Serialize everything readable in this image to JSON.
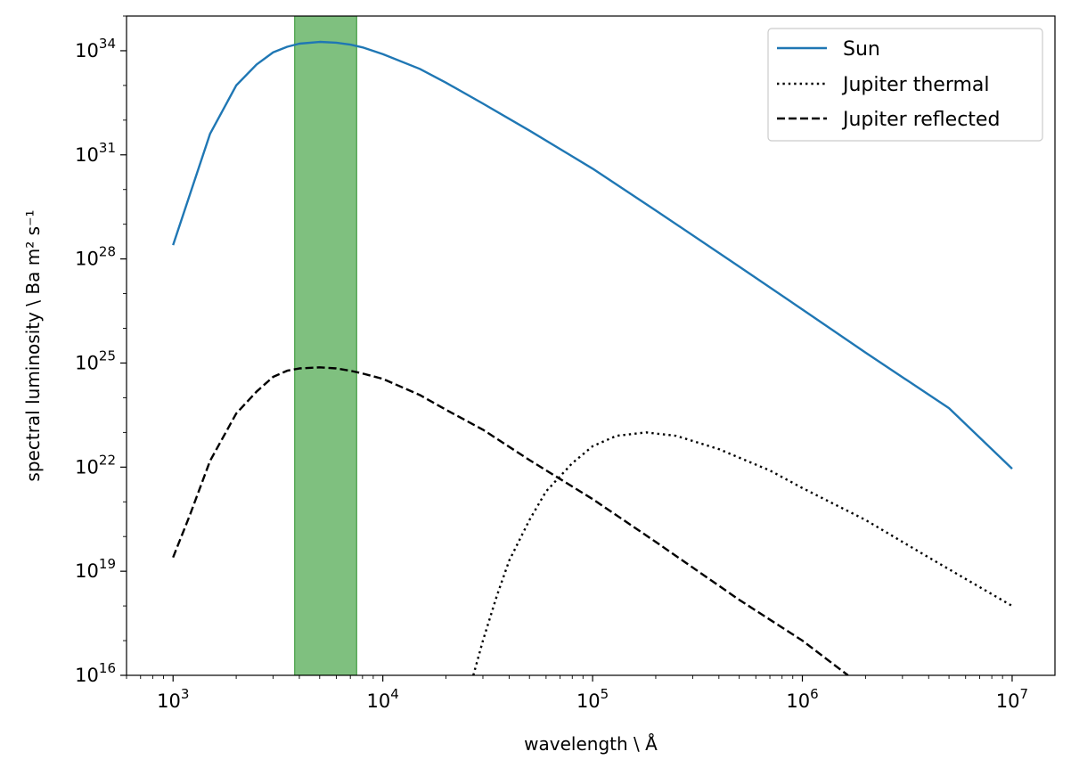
{
  "chart_data": {
    "type": "line",
    "x_scale": "log",
    "y_scale": "log",
    "xlabel": "wavelength \\ Å",
    "ylabel": "spectral luminosity \\ Ba m² s⁻¹",
    "xlim": [
      600,
      16000000
    ],
    "ylim": [
      1e+16,
      1e+35
    ],
    "x_ticks": [
      {
        "value": 1000,
        "base": "10",
        "exp": "3"
      },
      {
        "value": 10000,
        "base": "10",
        "exp": "4"
      },
      {
        "value": 100000,
        "base": "10",
        "exp": "5"
      },
      {
        "value": 1000000,
        "base": "10",
        "exp": "6"
      },
      {
        "value": 10000000,
        "base": "10",
        "exp": "7"
      }
    ],
    "y_ticks": [
      {
        "value": 1e+16,
        "base": "10",
        "exp": "16"
      },
      {
        "value": 1e+19,
        "base": "10",
        "exp": "19"
      },
      {
        "value": 1e+22,
        "base": "10",
        "exp": "22"
      },
      {
        "value": 1e+25,
        "base": "10",
        "exp": "25"
      },
      {
        "value": 1e+28,
        "base": "10",
        "exp": "28"
      },
      {
        "value": 1e+31,
        "base": "10",
        "exp": "31"
      },
      {
        "value": 1e+34,
        "base": "10",
        "exp": "34"
      }
    ],
    "shaded_band": {
      "x_range": [
        3800,
        7500
      ],
      "color": "#7fc07f"
    },
    "legend_position": "top-right",
    "grid": false,
    "series": [
      {
        "name": "Sun",
        "style": "solid",
        "color": "#1f77b4",
        "points": [
          [
            1000,
            2.5e+28
          ],
          [
            1500,
            4e+31
          ],
          [
            2000,
            1e+33
          ],
          [
            2500,
            4e+33
          ],
          [
            3000,
            9e+33
          ],
          [
            3500,
            1.3e+34
          ],
          [
            4000,
            1.6e+34
          ],
          [
            5000,
            1.8e+34
          ],
          [
            6000,
            1.7e+34
          ],
          [
            7000,
            1.5e+34
          ],
          [
            8000,
            1.25e+34
          ],
          [
            10000,
            8e+33
          ],
          [
            15000,
            3e+33
          ],
          [
            20000,
            1.2e+33
          ],
          [
            30000,
            3e+32
          ],
          [
            50000,
            5e+31
          ],
          [
            100000,
            4e+30
          ],
          [
            200000,
            2.5e+29
          ],
          [
            500000,
            6e+27
          ],
          [
            1000000,
            3.5e+26
          ],
          [
            2000000,
            2e+25
          ],
          [
            5000000,
            5e+23
          ],
          [
            10000000,
            9e+21
          ]
        ]
      },
      {
        "name": "Jupiter thermal",
        "style": "dotted",
        "color": "#000000",
        "points": [
          [
            27000,
            1e+16
          ],
          [
            30000,
            1e+17
          ],
          [
            35000,
            2e+18
          ],
          [
            40000,
            2e+19
          ],
          [
            50000,
            3e+20
          ],
          [
            60000,
            2e+21
          ],
          [
            80000,
            1.3e+22
          ],
          [
            100000,
            4e+22
          ],
          [
            130000,
            8e+22
          ],
          [
            180000,
            1e+23
          ],
          [
            250000,
            8e+22
          ],
          [
            400000,
            3.3e+22
          ],
          [
            700000,
            8e+21
          ],
          [
            1000000,
            2.5e+21
          ],
          [
            2000000,
            3e+20
          ],
          [
            4000000,
            2.5e+19
          ],
          [
            6000000,
            6e+18
          ],
          [
            10000000,
            1e+18
          ]
        ]
      },
      {
        "name": "Jupiter reflected",
        "style": "dashed",
        "color": "#000000",
        "points": [
          [
            1000,
            2.5e+19
          ],
          [
            1200,
            4e+20
          ],
          [
            1500,
            1.5e+22
          ],
          [
            2000,
            3.5e+23
          ],
          [
            2500,
            1.5e+24
          ],
          [
            3000,
            4e+24
          ],
          [
            3500,
            6e+24
          ],
          [
            4000,
            7e+24
          ],
          [
            5000,
            7.5e+24
          ],
          [
            6000,
            7e+24
          ],
          [
            7000,
            6e+24
          ],
          [
            8000,
            5e+24
          ],
          [
            10000,
            3.5e+24
          ],
          [
            15000,
            1.2e+24
          ],
          [
            20000,
            4.5e+23
          ],
          [
            30000,
            1.2e+23
          ],
          [
            50000,
            1.6e+22
          ],
          [
            100000,
            1.2e+21
          ],
          [
            200000,
            7e+19
          ],
          [
            500000,
            1.5e+18
          ],
          [
            1000000,
            1e+17
          ],
          [
            1650000,
            1e+16
          ]
        ]
      }
    ]
  }
}
